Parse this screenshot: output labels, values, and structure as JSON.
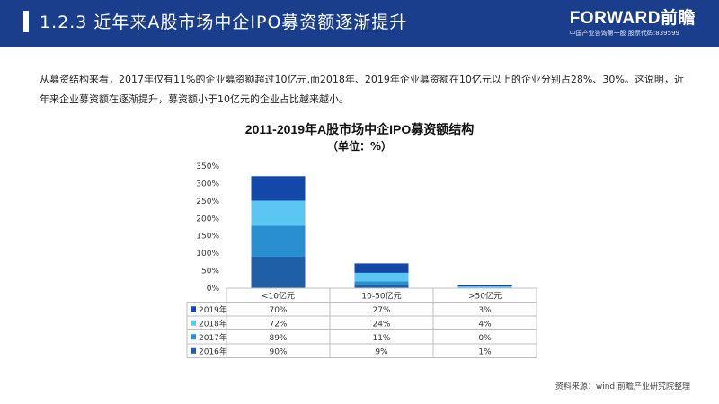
{
  "header": {
    "title": "1.2.3 近年来A股市场中企IPO募资额逐渐提升",
    "brand_name": "FORWARD前瞻",
    "brand_sub": "中国产业咨询第一股 股票代码:839599"
  },
  "intro": "从募资结构来看，2017年仅有11%的企业募资额超过10亿元,而2018年、2019年企业募资额在10亿元以上的企业分别占28%、30%。这说明，近年来企业募资额在逐渐提升，募资额小于10亿元的企业占比越来越小。",
  "source": "资料来源：wind 前瞻产业研究院整理",
  "colors": {
    "header_bg": "#1a3e8c",
    "series": [
      "#1f5fa8",
      "#2a8fd0",
      "#5cc6f2",
      "#1448a8"
    ]
  },
  "chart_data": {
    "type": "bar",
    "stacked": true,
    "title": "2011-2019年A股市场中企IPO募资额结构",
    "subtitle": "（单位：%）",
    "categories": [
      "<10亿元",
      "10-50亿元",
      ">50亿元"
    ],
    "y_ticks": [
      "0%",
      "50%",
      "100%",
      "150%",
      "200%",
      "250%",
      "300%",
      "350%"
    ],
    "ylim": [
      0,
      350
    ],
    "series": [
      {
        "name": "2016年",
        "values": [
          90,
          9,
          1
        ],
        "labels": [
          "90%",
          "9%",
          "1%"
        ]
      },
      {
        "name": "2017年",
        "values": [
          89,
          11,
          0
        ],
        "labels": [
          "89%",
          "11%",
          "0%"
        ]
      },
      {
        "name": "2018年",
        "values": [
          72,
          24,
          4
        ],
        "labels": [
          "72%",
          "24%",
          "4%"
        ]
      },
      {
        "name": "2019年",
        "values": [
          70,
          27,
          3
        ],
        "labels": [
          "70%",
          "27%",
          "3%"
        ]
      }
    ],
    "data_table": true,
    "table_order": [
      "2019年",
      "2018年",
      "2017年",
      "2016年"
    ]
  }
}
